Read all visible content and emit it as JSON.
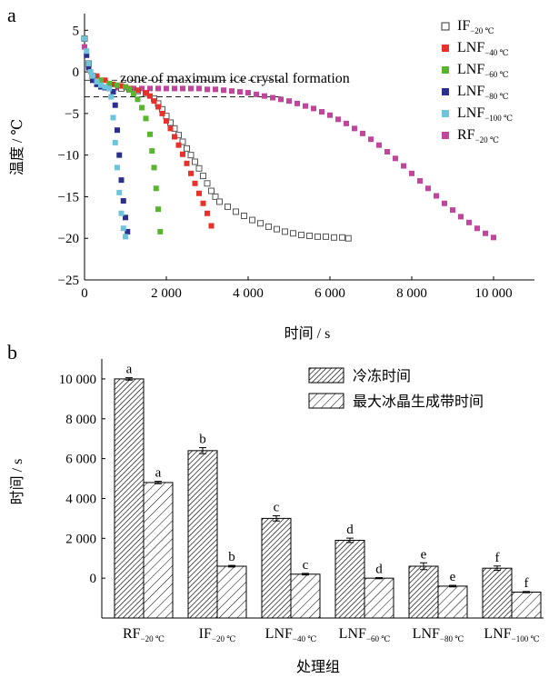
{
  "chart_data": [
    {
      "type": "scatter",
      "panel_label": "a",
      "xlabel": "时间 / s",
      "ylabel": "温度 / ℃",
      "xlim": [
        0,
        11000
      ],
      "ylim": [
        -25,
        7
      ],
      "xticks": [
        0,
        2000,
        4000,
        6000,
        8000,
        10000
      ],
      "xtick_labels": [
        "0",
        "2 000",
        "4 000",
        "6 000",
        "8 000",
        "10 000"
      ],
      "yticks": [
        5,
        0,
        -5,
        -10,
        -15,
        -20,
        -25
      ],
      "ytick_labels": [
        "5",
        "0",
        "−5",
        "−10",
        "−15",
        "−20",
        "−25"
      ],
      "annotation": "zone of maximum ice crystal formation",
      "zone_band": [
        -1,
        -3
      ],
      "legend_position": "top-right",
      "series": [
        {
          "name": "IF",
          "subscript": "−20 ℃",
          "color": "#555555",
          "marker": "open-square",
          "x": [
            0,
            100,
            200,
            300,
            500,
            700,
            900,
            1100,
            1300,
            1500,
            1700,
            1800,
            1900,
            2000,
            2100,
            2200,
            2300,
            2400,
            2500,
            2600,
            2700,
            2800,
            2900,
            3000,
            3100,
            3200,
            3300,
            3500,
            3700,
            3900,
            4100,
            4300,
            4500,
            4700,
            4900,
            5100,
            5300,
            5500,
            5700,
            5900,
            6100,
            6300,
            6450
          ],
          "y": [
            4,
            1,
            -0.5,
            -1,
            -1.5,
            -1.8,
            -2,
            -2.1,
            -2.3,
            -2.6,
            -3.2,
            -3.8,
            -4.5,
            -5.3,
            -6.1,
            -6.8,
            -7.6,
            -8.4,
            -9.2,
            -10,
            -10.8,
            -11.6,
            -12.5,
            -13.4,
            -14.3,
            -15,
            -15.6,
            -16.2,
            -16.8,
            -17.3,
            -17.8,
            -18.2,
            -18.6,
            -18.9,
            -19.2,
            -19.4,
            -19.6,
            -19.7,
            -19.8,
            -19.8,
            -19.9,
            -19.9,
            -20
          ]
        },
        {
          "name": "LNF",
          "subscript": "−40 ℃",
          "color": "#e8312a",
          "marker": "square",
          "x": [
            0,
            100,
            300,
            500,
            700,
            900,
            1100,
            1300,
            1500,
            1600,
            1700,
            1800,
            1900,
            2000,
            2100,
            2200,
            2300,
            2400,
            2500,
            2600,
            2700,
            2800,
            2900,
            3000,
            3100
          ],
          "y": [
            4,
            1,
            -0.5,
            -1,
            -1.5,
            -1.7,
            -2,
            -2.2,
            -2.5,
            -2.9,
            -3.5,
            -4.2,
            -5,
            -5.9,
            -6.8,
            -7.8,
            -8.8,
            -9.9,
            -11,
            -12.2,
            -13.4,
            -14.6,
            -15.8,
            -17,
            -18.5
          ]
        },
        {
          "name": "LNF",
          "subscript": "−60 ℃",
          "color": "#5ab52e",
          "marker": "square",
          "x": [
            0,
            100,
            200,
            400,
            600,
            800,
            1000,
            1100,
            1200,
            1300,
            1400,
            1500,
            1600,
            1650,
            1700,
            1750,
            1800,
            1850
          ],
          "y": [
            4,
            1,
            -0.5,
            -1,
            -1.4,
            -1.6,
            -1.8,
            -2.1,
            -2.6,
            -3.3,
            -4.3,
            -5.6,
            -7.5,
            -9.5,
            -11.5,
            -14,
            -16.5,
            -19.2
          ]
        },
        {
          "name": "LNF",
          "subscript": "−80 ℃",
          "color": "#2c2f8e",
          "marker": "square",
          "x": [
            0,
            50,
            100,
            200,
            300,
            400,
            500,
            600,
            700,
            750,
            800,
            850,
            900,
            950,
            1000,
            1050
          ],
          "y": [
            4,
            2,
            0.5,
            -1,
            -1.5,
            -1.8,
            -1.9,
            -2,
            -2.4,
            -4,
            -7,
            -10,
            -13,
            -15.5,
            -17.5,
            -19.2
          ]
        },
        {
          "name": "LNF",
          "subscript": "−100 ℃",
          "color": "#6ec4dd",
          "marker": "square",
          "x": [
            0,
            50,
            100,
            150,
            200,
            300,
            400,
            500,
            600,
            650,
            700,
            750,
            800,
            850,
            900,
            950,
            1000
          ],
          "y": [
            4,
            2.5,
            1,
            0,
            -0.5,
            -1.2,
            -1.6,
            -1.8,
            -2,
            -3,
            -5.5,
            -8.5,
            -11.5,
            -14.5,
            -17,
            -18.8,
            -19.8
          ]
        },
        {
          "name": "RF",
          "subscript": "−20 ℃",
          "color": "#c2459c",
          "marker": "square",
          "x": [
            0,
            100,
            200,
            400,
            600,
            800,
            1000,
            1200,
            1400,
            1600,
            1800,
            2000,
            2200,
            2400,
            2600,
            2800,
            3000,
            3200,
            3400,
            3600,
            3800,
            4000,
            4200,
            4400,
            4600,
            4800,
            5000,
            5200,
            5400,
            5600,
            5800,
            6000,
            6200,
            6400,
            6600,
            6800,
            7000,
            7200,
            7400,
            7600,
            7800,
            8000,
            8200,
            8400,
            8600,
            8800,
            9000,
            9200,
            9400,
            9600,
            9800,
            10000
          ],
          "y": [
            3,
            0.5,
            -1,
            -1.5,
            -1.8,
            -1.9,
            -1.9,
            -2,
            -2,
            -2,
            -2,
            -2,
            -2,
            -2,
            -2,
            -2,
            -2.1,
            -2.1,
            -2.2,
            -2.3,
            -2.4,
            -2.5,
            -2.7,
            -2.9,
            -3.1,
            -3.3,
            -3.5,
            -3.8,
            -4.1,
            -4.4,
            -4.8,
            -5.2,
            -5.7,
            -6.2,
            -6.8,
            -7.4,
            -8.1,
            -8.8,
            -9.6,
            -10.4,
            -11.3,
            -12.2,
            -13.1,
            -14,
            -14.9,
            -15.8,
            -16.6,
            -17.4,
            -18.1,
            -18.8,
            -19.4,
            -19.9
          ]
        }
      ]
    },
    {
      "type": "bar",
      "panel_label": "b",
      "xlabel": "处理组",
      "ylabel": "时间 / s",
      "ylim": [
        -2000,
        11000
      ],
      "yticks": [
        0,
        2000,
        4000,
        6000,
        8000,
        10000
      ],
      "ytick_labels": [
        "0",
        "2 000",
        "4 000",
        "6 000",
        "8 000",
        "10 000"
      ],
      "legend_position": "top-right",
      "categories": [
        {
          "name": "RF",
          "subscript": "−20 ℃"
        },
        {
          "name": "IF",
          "subscript": "−20 ℃"
        },
        {
          "name": "LNF",
          "subscript": "−40 ℃"
        },
        {
          "name": "LNF",
          "subscript": "−60 ℃"
        },
        {
          "name": "LNF",
          "subscript": "−80 ℃"
        },
        {
          "name": "LNF",
          "subscript": "−100 ℃"
        }
      ],
      "series": [
        {
          "name": "冷冻时间",
          "pattern": "dense-hatch",
          "values": [
            10000,
            6400,
            3000,
            1900,
            600,
            500
          ],
          "errors": [
            60,
            150,
            130,
            110,
            170,
            110
          ],
          "letters": [
            "a",
            "b",
            "c",
            "d",
            "e",
            "f"
          ]
        },
        {
          "name": "最大冰晶生成带时间",
          "pattern": "sparse-hatch",
          "values": [
            4800,
            600,
            200,
            0,
            -400,
            -700
          ],
          "errors": [
            60,
            40,
            40,
            30,
            40,
            30
          ],
          "letters": [
            "a",
            "b",
            "c",
            "d",
            "e",
            "f"
          ]
        }
      ]
    }
  ]
}
